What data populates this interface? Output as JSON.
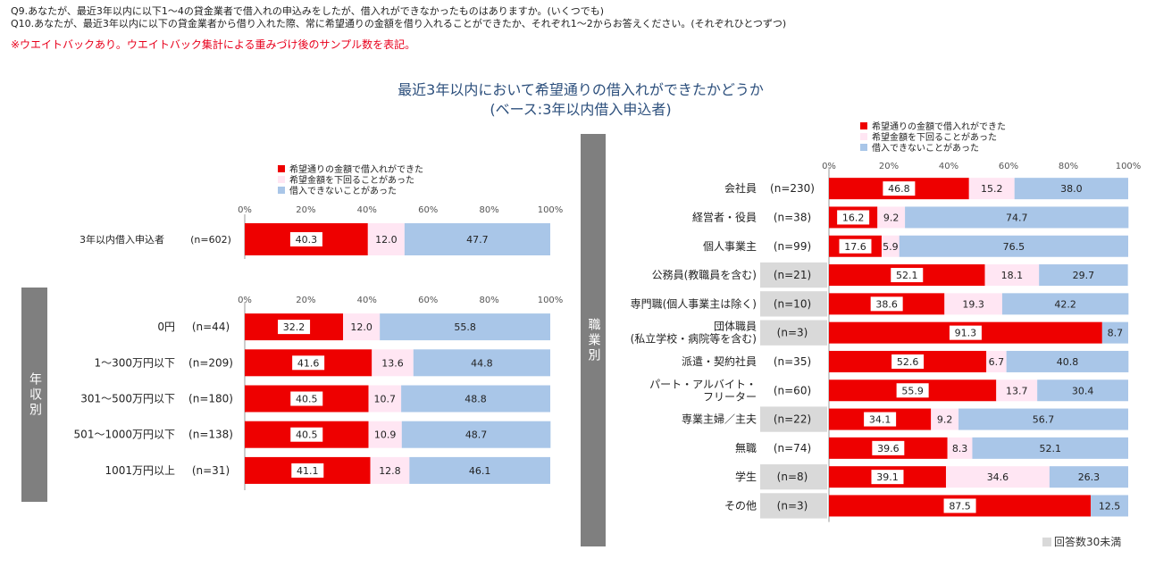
{
  "header": {
    "q9": "Q9.あなたが、最近3年以内に以下1～4の貸金業者で借入れの申込みをしたが、借入れができなかったものはありますか。(いくつでも)",
    "q10": "Q10.あなたが、最近3年以内に以下の貸金業者から借り入れた際、常に希望通りの金額を借り入れることができたか、それぞれ1～2からお答えください。(それぞれひとつずつ)",
    "note": "※ウエイトバックあり。ウエイトバック集計による重みづけ後のサンプル数を表記。"
  },
  "title_line1": "最近3年以内において希望通りの借入れができたかどうか",
  "title_line2": "(ベース:3年以内借入申込者)",
  "group_labels": {
    "income": "年収別",
    "occupation": "職業別"
  },
  "footnote": "回答数30未満",
  "colors": {
    "s1": "#ee0000",
    "s2": "#ffe6f3",
    "s3": "#a9c6e8",
    "highlight": "#d9d9d9",
    "axis": "#9a9a9a"
  },
  "legend": [
    "希望通りの金額で借入れができた",
    "希望金額を下回ることがあった",
    "借入できないことがあった"
  ],
  "ticks": [
    "0%",
    "20%",
    "40%",
    "60%",
    "80%",
    "100%"
  ],
  "chart_data": [
    {
      "type": "bar",
      "stacked": true,
      "orientation": "horizontal",
      "xlim": [
        0,
        100
      ],
      "categories": [
        "3年以内借入申込者"
      ],
      "n": [
        "(n=602)"
      ],
      "series": [
        {
          "name": "希望通りの金額で借入れができた",
          "values": [
            40.3
          ]
        },
        {
          "name": "希望金額を下回ることがあった",
          "values": [
            12.0
          ]
        },
        {
          "name": "借入できないことがあった",
          "values": [
            47.7
          ]
        }
      ]
    },
    {
      "type": "bar",
      "stacked": true,
      "orientation": "horizontal",
      "xlim": [
        0,
        100
      ],
      "categories": [
        "0円",
        "1～300万円以下",
        "301～500万円以下",
        "501～1000万円以下",
        "1001万円以上"
      ],
      "n": [
        "(n=44)",
        "(n=209)",
        "(n=180)",
        "(n=138)",
        "(n=31)"
      ],
      "series": [
        {
          "name": "希望通りの金額で借入れができた",
          "values": [
            32.2,
            41.6,
            40.5,
            40.5,
            41.1
          ]
        },
        {
          "name": "希望金額を下回ることがあった",
          "values": [
            12.0,
            13.6,
            10.7,
            10.9,
            12.8
          ]
        },
        {
          "name": "借入できないことがあった",
          "values": [
            55.8,
            44.8,
            48.8,
            48.7,
            46.1
          ]
        }
      ]
    },
    {
      "type": "bar",
      "stacked": true,
      "orientation": "horizontal",
      "xlim": [
        0,
        100
      ],
      "categories": [
        "会社員",
        "経営者・役員",
        "個人事業主",
        "公務員(教職員を含む)",
        "専門職(個人事業主は除く)",
        "団体職員\n(私立学校・病院等を含む)",
        "派遣・契約社員",
        "パート・アルバイト・\nフリーター",
        "専業主婦／主夫",
        "無職",
        "学生",
        "その他"
      ],
      "n": [
        "(n=230)",
        "(n=38)",
        "(n=99)",
        "(n=21)",
        "(n=10)",
        "(n=3)",
        "(n=35)",
        "(n=60)",
        "(n=22)",
        "(n=74)",
        "(n=8)",
        "(n=3)"
      ],
      "under30": [
        false,
        false,
        false,
        true,
        true,
        true,
        false,
        false,
        true,
        false,
        true,
        true
      ],
      "series": [
        {
          "name": "希望通りの金額で借入れができた",
          "values": [
            46.8,
            16.2,
            17.6,
            52.1,
            38.6,
            91.3,
            52.6,
            55.9,
            34.1,
            39.6,
            39.1,
            87.5
          ]
        },
        {
          "name": "希望金額を下回ることがあった",
          "values": [
            15.2,
            9.2,
            5.9,
            18.1,
            19.3,
            0.0,
            6.7,
            13.7,
            9.2,
            8.3,
            34.6,
            0.0
          ]
        },
        {
          "name": "借入できないことがあった",
          "values": [
            38.0,
            74.7,
            76.5,
            29.7,
            42.2,
            8.7,
            40.8,
            30.4,
            56.7,
            52.1,
            26.3,
            12.5
          ]
        }
      ]
    }
  ]
}
